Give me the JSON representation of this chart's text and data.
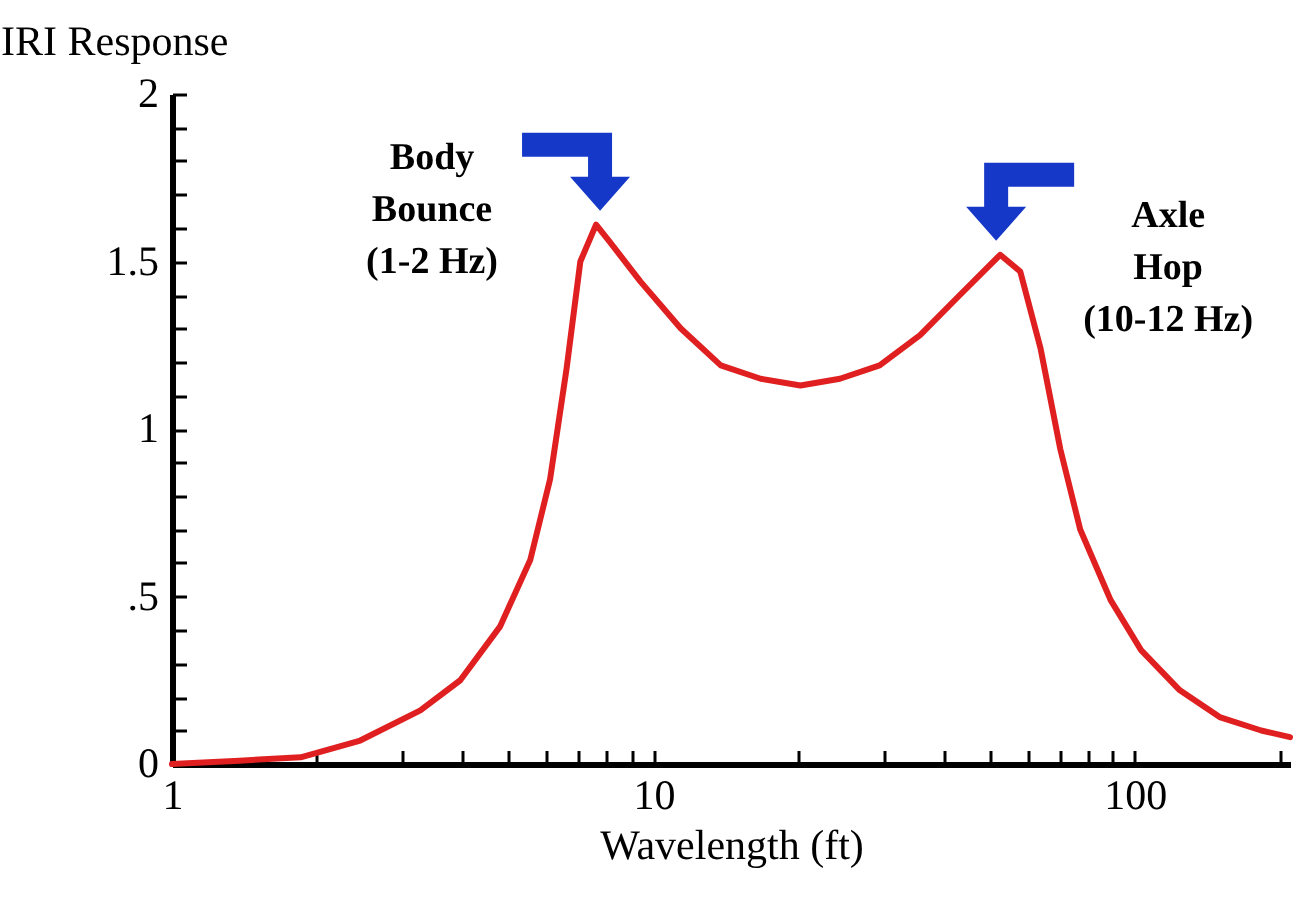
{
  "chart_data": {
    "type": "line",
    "ylabel": "IRI Response",
    "xlabel": "Wavelength (ft)",
    "log": "x",
    "grid": false,
    "marker": "none",
    "line_style": "solid",
    "xlim": [
      1,
      210
    ],
    "ylim": [
      0,
      2
    ],
    "xticks": [
      1,
      {
        "value": 2,
        "label": null
      },
      {
        "value": 3,
        "label": null
      },
      {
        "value": 4,
        "label": null
      },
      {
        "value": 5,
        "label": null
      },
      {
        "value": 6,
        "label": null
      },
      {
        "value": 7,
        "label": null
      },
      {
        "value": 8,
        "label": null
      },
      {
        "value": 9,
        "label": null
      },
      10,
      {
        "value": 20,
        "label": null
      },
      {
        "value": 30,
        "label": null
      },
      {
        "value": 40,
        "label": null
      },
      {
        "value": 50,
        "label": null
      },
      {
        "value": 60,
        "label": null
      },
      {
        "value": 70,
        "label": null
      },
      {
        "value": 80,
        "label": null
      },
      {
        "value": 90,
        "label": null
      },
      100,
      {
        "value": 200,
        "label": null
      }
    ],
    "yticks": [
      0,
      {
        "value": 0.1,
        "label": null
      },
      {
        "value": 0.2,
        "label": null
      },
      {
        "value": 0.3,
        "label": null
      },
      {
        "value": 0.4,
        "label": null
      },
      {
        "value": 0.5,
        "label": ".5"
      },
      {
        "value": 0.6,
        "label": null
      },
      {
        "value": 0.7,
        "label": null
      },
      {
        "value": 0.8,
        "label": null
      },
      {
        "value": 0.9,
        "label": null
      },
      1,
      {
        "value": 1.1,
        "label": null
      },
      {
        "value": 1.2,
        "label": null
      },
      {
        "value": 1.3,
        "label": null
      },
      {
        "value": 1.4,
        "label": null
      },
      1.5,
      {
        "value": 1.6,
        "label": null
      },
      {
        "value": 1.7,
        "label": null
      },
      {
        "value": 1.8,
        "label": null
      },
      {
        "value": 1.9,
        "label": null
      },
      2
    ],
    "series": [
      {
        "color": "#e02020",
        "x": [
          1,
          1.38,
          1.85,
          2.46,
          3.28,
          3.97,
          4.8,
          5.55,
          6.1,
          6.6,
          7.05,
          7.6,
          8.1,
          9.4,
          11.4,
          13.8,
          16.7,
          20.2,
          24.4,
          29.5,
          35.8,
          43.3,
          52.5,
          57.8,
          63.7,
          70,
          77,
          89,
          103,
          124,
          150,
          183,
          210
        ],
        "values": [
          0,
          0.01,
          0.02,
          0.07,
          0.16,
          0.25,
          0.41,
          0.61,
          0.85,
          1.18,
          1.5,
          1.61,
          1.56,
          1.44,
          1.3,
          1.19,
          1.15,
          1.13,
          1.15,
          1.19,
          1.28,
          1.4,
          1.52,
          1.47,
          1.24,
          0.94,
          0.7,
          0.49,
          0.34,
          0.22,
          0.14,
          0.1,
          0.08
        ]
      }
    ],
    "annotations": [
      {
        "text": "Body\nBounce\n(1-2 Hz)",
        "x": 7.6,
        "y": 1.61
      },
      {
        "text": "Axle\nHop\n(10-12 Hz)",
        "x": 52.5,
        "y": 1.52
      }
    ]
  }
}
